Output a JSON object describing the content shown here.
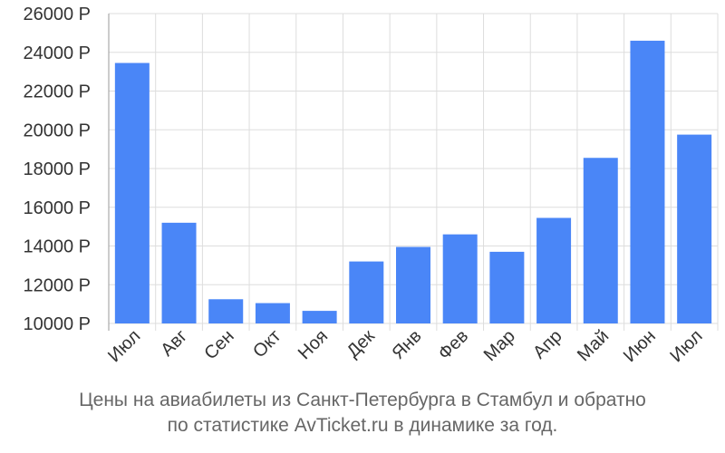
{
  "chart_data": {
    "type": "bar",
    "title": "",
    "xlabel": "",
    "ylabel": "",
    "categories": [
      "Июл",
      "Авг",
      "Сен",
      "Окт",
      "Ноя",
      "Дек",
      "Янв",
      "Фев",
      "Мар",
      "Апр",
      "Май",
      "Июн",
      "Июл"
    ],
    "series": [
      {
        "values": [
          23450,
          15200,
          11250,
          11050,
          10650,
          13200,
          13950,
          14600,
          13700,
          15450,
          18550,
          24600,
          19750
        ]
      }
    ],
    "ylim": [
      10000,
      26000
    ],
    "yticks": [
      10000,
      12000,
      14000,
      16000,
      18000,
      20000,
      22000,
      24000,
      26000
    ],
    "ytick_labels": [
      "10000 Р",
      "12000 Р",
      "14000 Р",
      "16000 Р",
      "18000 Р",
      "20000 Р",
      "22000 Р",
      "24000 Р",
      "26000 Р"
    ],
    "grid": true,
    "bar_color": "#4a86f7",
    "grid_color": "#dddddd"
  },
  "caption": {
    "line1": "Цены на авиабилеты из Санкт-Петербурга в Стамбул и обратно",
    "line2": "по статистике AvTicket.ru в динамике за год."
  }
}
